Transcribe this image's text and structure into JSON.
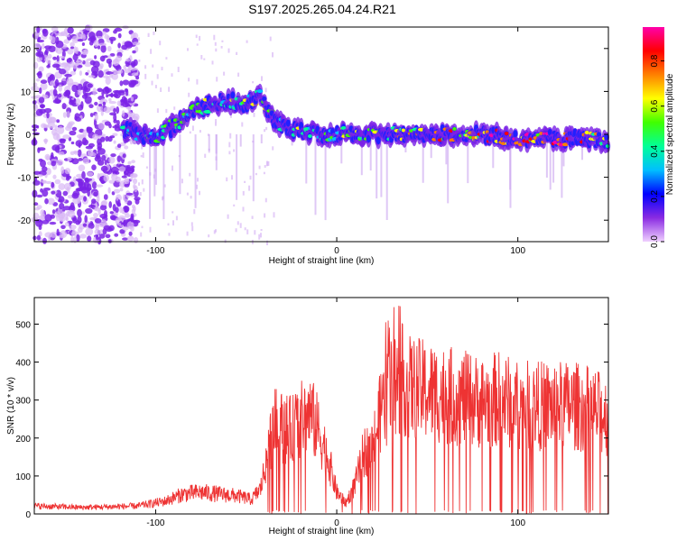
{
  "title": "S197.2025.265.04.24.R21",
  "colors": {
    "signal": "#ee3333",
    "axis": "#000000",
    "background": "#ffffff"
  },
  "chart_data": [
    {
      "type": "heatmap",
      "name": "spectrogram",
      "xlabel": "Height of straight line (km)",
      "ylabel": "Frequency (Hz)",
      "xlim": [
        -167,
        150
      ],
      "ylim": [
        -25,
        25
      ],
      "xticks": [
        -100,
        0,
        100
      ],
      "yticks": [
        -20,
        -10,
        0,
        10,
        20
      ],
      "colorbar": {
        "label": "Normalized spectral amplitude",
        "range": [
          0.0,
          0.95
        ],
        "ticks": [
          "0.0",
          "0.2",
          "0.4",
          "0.6",
          "0.8"
        ],
        "colormap": [
          "#f0d0ff",
          "#8a2be2",
          "#0000ff",
          "#00bfff",
          "#00ff99",
          "#40ff00",
          "#ffff00",
          "#ff8000",
          "#ff0000",
          "#ff00aa"
        ]
      },
      "ridge": {
        "x": [
          -115,
          -100,
          -90,
          -80,
          -70,
          -60,
          -50,
          -42,
          -35,
          -25,
          -10,
          0,
          20,
          50,
          80,
          100,
          120,
          140,
          150
        ],
        "frequency": [
          1,
          -1,
          2,
          5,
          7,
          8,
          7,
          9,
          3,
          1,
          0,
          0,
          0,
          0,
          0,
          -1,
          -1,
          -1,
          -2
        ],
        "amplitude": [
          0.5,
          0.45,
          0.55,
          0.5,
          0.6,
          0.55,
          0.5,
          0.55,
          0.5,
          0.55,
          0.5,
          0.5,
          0.6,
          0.7,
          0.75,
          0.85,
          0.9,
          0.75,
          0.6
        ]
      }
    },
    {
      "type": "line",
      "name": "snr",
      "xlabel": "Height of straight line (km)",
      "ylabel": "SNR (10 * v/v)",
      "xlim": [
        -167,
        150
      ],
      "ylim": [
        0,
        570
      ],
      "xticks": [
        -100,
        0,
        100
      ],
      "yticks": [
        0,
        100,
        200,
        300,
        400,
        500
      ],
      "envelope": {
        "x": [
          -167,
          -140,
          -110,
          -95,
          -85,
          -75,
          -65,
          -55,
          -47,
          -42,
          -38,
          -35,
          -30,
          -25,
          -20,
          -15,
          -10,
          -5,
          0,
          5,
          10,
          15,
          20,
          25,
          30,
          35,
          40,
          50,
          60,
          70,
          80,
          90,
          100,
          110,
          120,
          130,
          140,
          150
        ],
        "values": [
          22,
          18,
          22,
          35,
          55,
          60,
          55,
          50,
          40,
          70,
          170,
          250,
          240,
          230,
          260,
          280,
          230,
          160,
          60,
          30,
          80,
          170,
          190,
          300,
          340,
          380,
          350,
          340,
          330,
          320,
          310,
          320,
          300,
          300,
          300,
          300,
          290,
          270
        ]
      }
    }
  ]
}
